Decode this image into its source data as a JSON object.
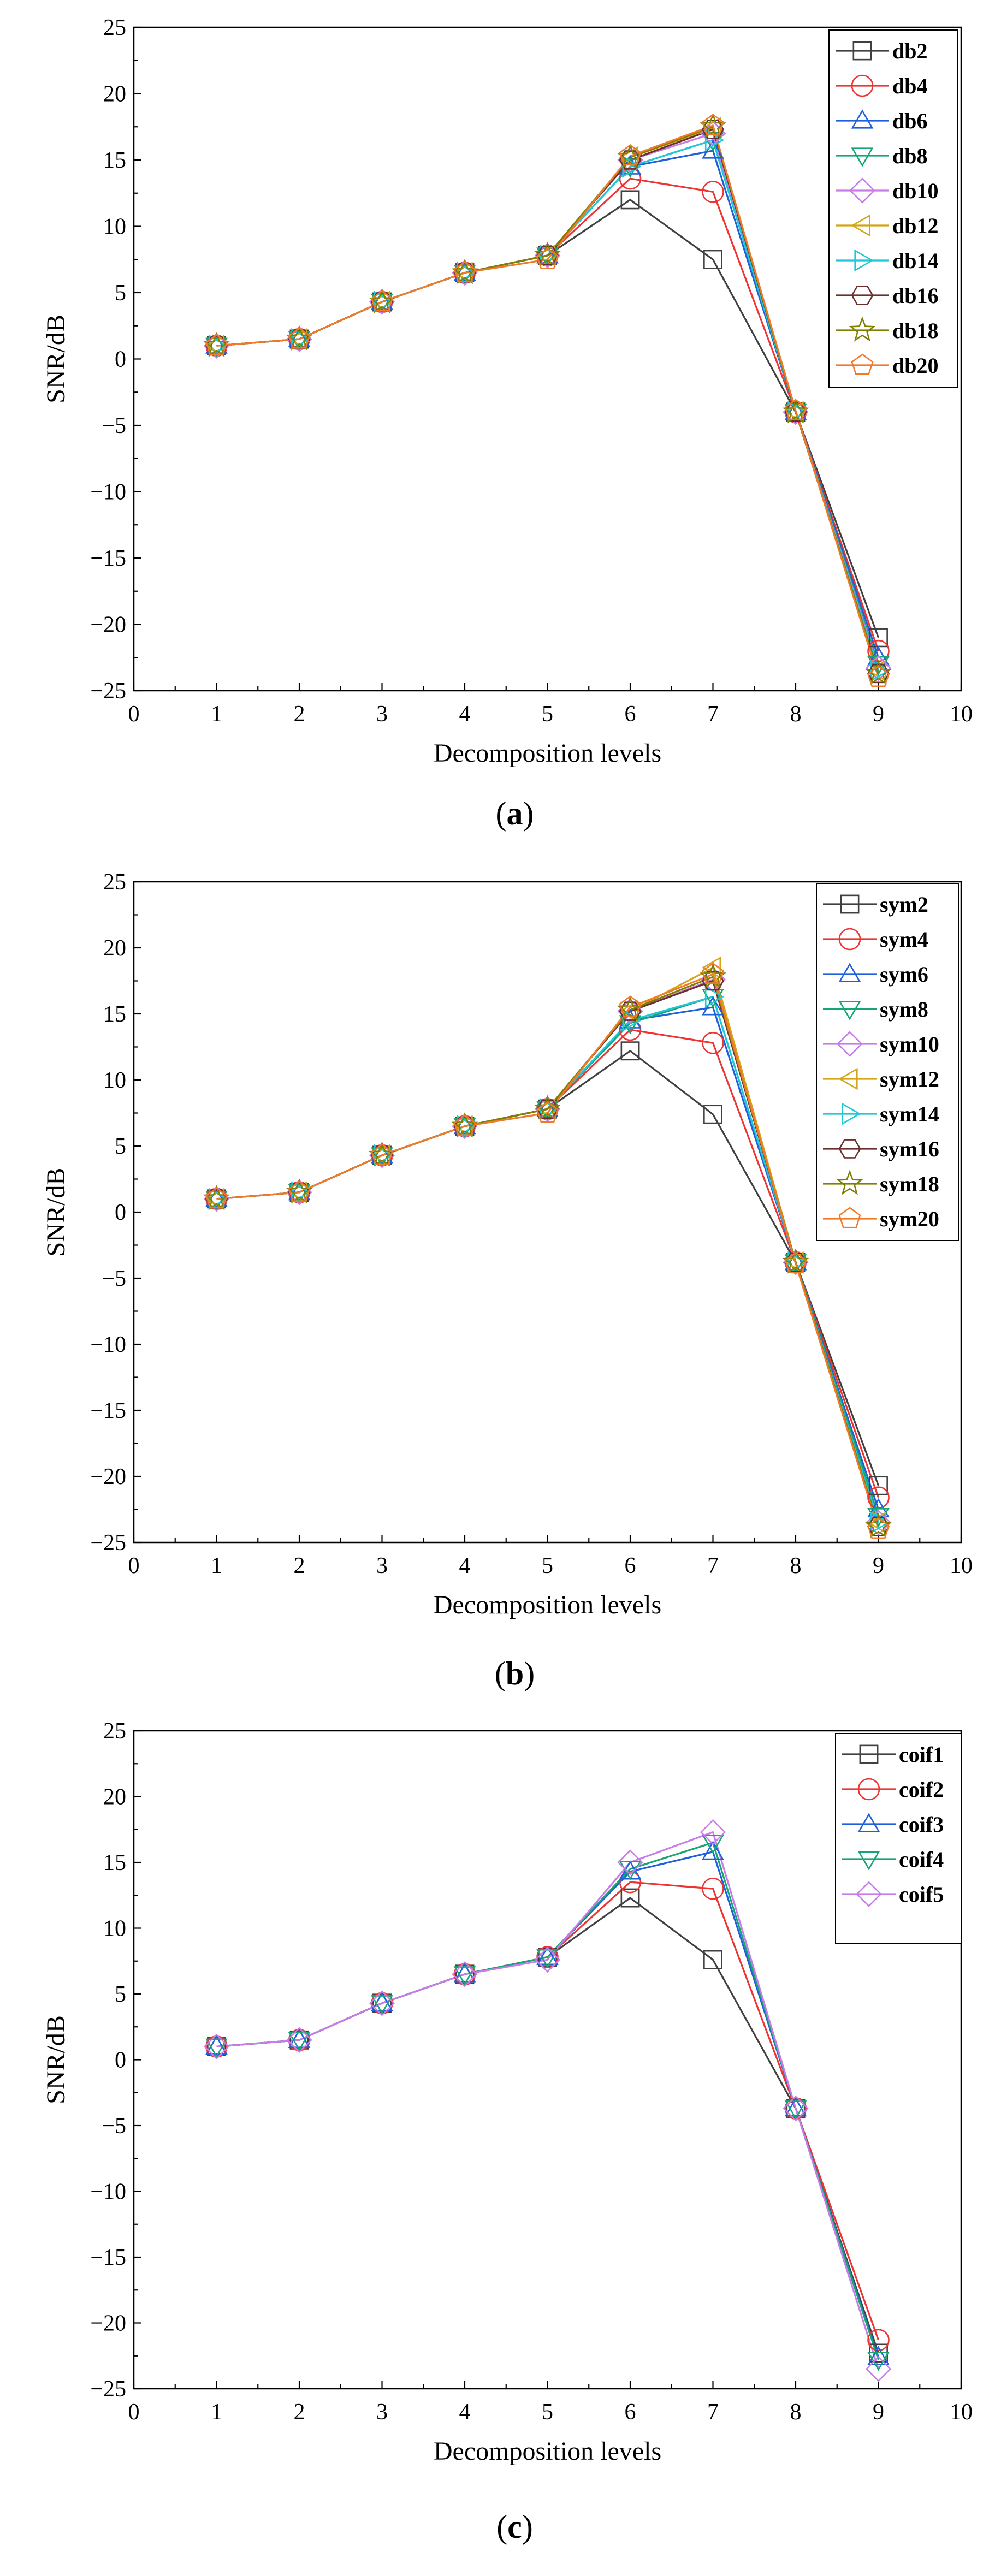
{
  "figure": {
    "panels": [
      {
        "caption_open": "(",
        "caption_letter": "a",
        "caption_close": ")"
      },
      {
        "caption_open": "(",
        "caption_letter": "b",
        "caption_close": ")"
      },
      {
        "caption_open": "(",
        "caption_letter": "c",
        "caption_close": ")"
      }
    ]
  },
  "chart_data": [
    {
      "type": "line",
      "title": "",
      "xlabel": "Decomposition levels",
      "ylabel": "SNR/dB",
      "xlim": [
        0,
        10
      ],
      "ylim": [
        -25,
        25
      ],
      "xticks": [
        0,
        1,
        2,
        3,
        4,
        5,
        6,
        7,
        8,
        9,
        10
      ],
      "yticks": [
        -25,
        -20,
        -15,
        -10,
        -5,
        0,
        5,
        10,
        15,
        20,
        25
      ],
      "legend_position": "top-right",
      "x": [
        1,
        2,
        3,
        4,
        5,
        6,
        7,
        8,
        9
      ],
      "series": [
        {
          "name": "db2",
          "marker": "square",
          "color": "#404040",
          "values": [
            1.0,
            1.5,
            4.3,
            6.5,
            7.8,
            12.0,
            7.5,
            -4.0,
            -21.0
          ]
        },
        {
          "name": "db4",
          "marker": "circle",
          "color": "#ee3333",
          "values": [
            1.0,
            1.5,
            4.3,
            6.5,
            7.8,
            13.6,
            12.6,
            -4.0,
            -22.0
          ]
        },
        {
          "name": "db6",
          "marker": "triangle-up",
          "color": "#1f5fdc",
          "values": [
            1.0,
            1.5,
            4.3,
            6.5,
            7.8,
            14.5,
            15.7,
            -4.0,
            -22.5
          ]
        },
        {
          "name": "db8",
          "marker": "triangle-down",
          "color": "#17a673",
          "values": [
            1.0,
            1.5,
            4.3,
            6.5,
            7.8,
            14.5,
            16.5,
            -4.0,
            -23.0
          ]
        },
        {
          "name": "db10",
          "marker": "diamond",
          "color": "#c77ce8",
          "values": [
            1.0,
            1.5,
            4.3,
            6.5,
            7.8,
            15.0,
            17.0,
            -4.0,
            -23.3
          ]
        },
        {
          "name": "db12",
          "marker": "triangle-left",
          "color": "#d4a514",
          "values": [
            1.0,
            1.5,
            4.3,
            6.5,
            7.8,
            15.2,
            17.4,
            -4.0,
            -23.5
          ]
        },
        {
          "name": "db14",
          "marker": "triangle-right",
          "color": "#1ec8d6",
          "values": [
            1.0,
            1.5,
            4.3,
            6.5,
            7.8,
            14.5,
            16.5,
            -4.0,
            -23.5
          ]
        },
        {
          "name": "db16",
          "marker": "hexagon",
          "color": "#6b2f2f",
          "values": [
            1.0,
            1.5,
            4.3,
            6.5,
            7.8,
            15.0,
            17.3,
            -4.0,
            -23.7
          ]
        },
        {
          "name": "db18",
          "marker": "star",
          "color": "#808000",
          "values": [
            1.0,
            1.5,
            4.3,
            6.5,
            7.8,
            15.2,
            17.5,
            -4.0,
            -23.7
          ]
        },
        {
          "name": "db20",
          "marker": "pentagon",
          "color": "#f07a2a",
          "values": [
            1.0,
            1.5,
            4.3,
            6.5,
            7.5,
            15.3,
            17.6,
            -3.9,
            -24.0
          ]
        }
      ]
    },
    {
      "type": "line",
      "title": "",
      "xlabel": "Decomposition levels",
      "ylabel": "SNR/dB",
      "xlim": [
        0,
        10
      ],
      "ylim": [
        -25,
        25
      ],
      "xticks": [
        0,
        1,
        2,
        3,
        4,
        5,
        6,
        7,
        8,
        9,
        10
      ],
      "yticks": [
        -25,
        -20,
        -15,
        -10,
        -5,
        0,
        5,
        10,
        15,
        20,
        25
      ],
      "legend_position": "top-right",
      "x": [
        1,
        2,
        3,
        4,
        5,
        6,
        7,
        8,
        9
      ],
      "series": [
        {
          "name": "sym2",
          "marker": "square",
          "color": "#404040",
          "values": [
            1.0,
            1.5,
            4.3,
            6.5,
            7.8,
            12.2,
            7.4,
            -3.8,
            -20.7
          ]
        },
        {
          "name": "sym4",
          "marker": "circle",
          "color": "#ee3333",
          "values": [
            1.0,
            1.5,
            4.3,
            6.5,
            7.8,
            13.8,
            12.8,
            -3.8,
            -21.6
          ]
        },
        {
          "name": "sym6",
          "marker": "triangle-up",
          "color": "#1f5fdc",
          "values": [
            1.0,
            1.5,
            4.3,
            6.5,
            7.8,
            14.5,
            15.5,
            -3.8,
            -22.5
          ]
        },
        {
          "name": "sym8",
          "marker": "triangle-down",
          "color": "#17a673",
          "values": [
            1.0,
            1.5,
            4.3,
            6.5,
            7.8,
            14.3,
            16.3,
            -3.8,
            -23.0
          ]
        },
        {
          "name": "sym10",
          "marker": "diamond",
          "color": "#c77ce8",
          "values": [
            1.0,
            1.5,
            4.3,
            6.5,
            7.8,
            15.2,
            17.6,
            -3.8,
            -23.5
          ]
        },
        {
          "name": "sym12",
          "marker": "triangle-left",
          "color": "#d4a514",
          "values": [
            1.0,
            1.5,
            4.3,
            6.5,
            7.8,
            15.2,
            18.5,
            -3.8,
            -23.5
          ]
        },
        {
          "name": "sym14",
          "marker": "triangle-right",
          "color": "#1ec8d6",
          "values": [
            1.0,
            1.5,
            4.3,
            6.5,
            7.8,
            14.5,
            16.3,
            -3.8,
            -23.5
          ]
        },
        {
          "name": "sym16",
          "marker": "hexagon",
          "color": "#6b2f2f",
          "values": [
            1.0,
            1.5,
            4.3,
            6.5,
            7.8,
            15.2,
            17.5,
            -3.8,
            -23.8
          ]
        },
        {
          "name": "sym18",
          "marker": "star",
          "color": "#808000",
          "values": [
            1.0,
            1.5,
            4.3,
            6.5,
            7.8,
            15.3,
            17.8,
            -3.8,
            -23.8
          ]
        },
        {
          "name": "sym20",
          "marker": "pentagon",
          "color": "#f07a2a",
          "values": [
            1.0,
            1.5,
            4.3,
            6.5,
            7.5,
            15.5,
            18.0,
            -3.9,
            -24.0
          ]
        }
      ]
    },
    {
      "type": "line",
      "title": "",
      "xlabel": "Decomposition levels",
      "ylabel": "SNR/dB",
      "xlim": [
        0,
        10
      ],
      "ylim": [
        -25,
        25
      ],
      "xticks": [
        0,
        1,
        2,
        3,
        4,
        5,
        6,
        7,
        8,
        9,
        10
      ],
      "yticks": [
        -25,
        -20,
        -15,
        -10,
        -5,
        0,
        5,
        10,
        15,
        20,
        25
      ],
      "legend_position": "top-right",
      "x": [
        1,
        2,
        3,
        4,
        5,
        6,
        7,
        8,
        9
      ],
      "series": [
        {
          "name": "coif1",
          "marker": "square",
          "color": "#404040",
          "values": [
            1.0,
            1.5,
            4.3,
            6.5,
            7.8,
            12.3,
            7.6,
            -3.7,
            -22.3
          ]
        },
        {
          "name": "coif2",
          "marker": "circle",
          "color": "#ee3333",
          "values": [
            1.0,
            1.5,
            4.3,
            6.5,
            7.8,
            13.5,
            13.0,
            -3.7,
            -21.3
          ]
        },
        {
          "name": "coif3",
          "marker": "triangle-up",
          "color": "#1f5fdc",
          "values": [
            1.0,
            1.5,
            4.3,
            6.5,
            7.8,
            14.3,
            15.8,
            -3.7,
            -22.6
          ]
        },
        {
          "name": "coif4",
          "marker": "triangle-down",
          "color": "#17a673",
          "values": [
            1.0,
            1.5,
            4.3,
            6.5,
            7.8,
            14.5,
            16.5,
            -3.7,
            -22.8
          ]
        },
        {
          "name": "coif5",
          "marker": "diamond",
          "color": "#c77ce8",
          "values": [
            1.0,
            1.5,
            4.3,
            6.5,
            7.6,
            15.0,
            17.3,
            -3.7,
            -23.5
          ]
        }
      ]
    }
  ]
}
